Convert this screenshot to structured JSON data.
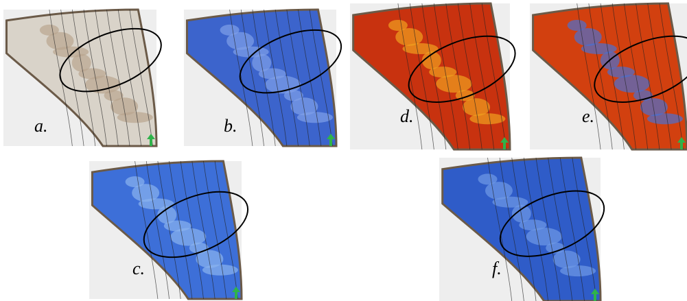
{
  "panels": [
    {
      "label": "a."
    },
    {
      "label": "b."
    },
    {
      "label": "d."
    },
    {
      "label": "e."
    },
    {
      "label": "c."
    },
    {
      "label": "f."
    }
  ]
}
